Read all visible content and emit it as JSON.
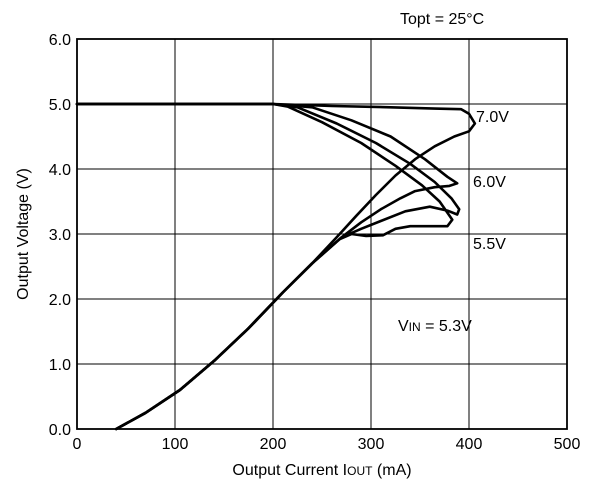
{
  "chart_data": {
    "type": "line",
    "xlabel_main": "Output Current I",
    "xlabel_sub": "OUT",
    "xlabel_unit": " (mA)",
    "ylabel": "Output Voltage (V)",
    "xlim": [
      0,
      500
    ],
    "ylim": [
      0,
      6
    ],
    "x_ticks": [
      "0",
      "100",
      "200",
      "300",
      "400",
      "500"
    ],
    "y_ticks": [
      "0.0",
      "1.0",
      "2.0",
      "3.0",
      "4.0",
      "5.0",
      "6.0"
    ],
    "grid": true,
    "condition": "Topt = 25°C",
    "vin_label_main": "V",
    "vin_label_sub": "IN",
    "vin_label_rest": " = 5.3V",
    "series": [
      {
        "name": "7.0V",
        "points": [
          [
            0,
            5.0
          ],
          [
            100,
            5.0
          ],
          [
            200,
            5.0
          ],
          [
            260,
            4.97
          ],
          [
            320,
            4.95
          ],
          [
            365,
            4.93
          ],
          [
            392,
            4.92
          ],
          [
            400,
            4.85
          ],
          [
            406,
            4.7
          ],
          [
            400,
            4.58
          ],
          [
            385,
            4.5
          ],
          [
            365,
            4.35
          ],
          [
            345,
            4.15
          ],
          [
            325,
            3.9
          ],
          [
            305,
            3.6
          ],
          [
            285,
            3.28
          ],
          [
            265,
            2.95
          ],
          [
            240,
            2.55
          ],
          [
            210,
            2.1
          ],
          [
            175,
            1.55
          ],
          [
            140,
            1.05
          ],
          [
            105,
            0.6
          ],
          [
            70,
            0.25
          ],
          [
            40,
            0.0
          ]
        ]
      },
      {
        "name": "6.0V",
        "points": [
          [
            0,
            5.0
          ],
          [
            100,
            5.0
          ],
          [
            200,
            5.0
          ],
          [
            240,
            4.95
          ],
          [
            280,
            4.75
          ],
          [
            320,
            4.5
          ],
          [
            355,
            4.15
          ],
          [
            378,
            3.88
          ],
          [
            388,
            3.78
          ],
          [
            380,
            3.74
          ],
          [
            365,
            3.72
          ],
          [
            345,
            3.66
          ],
          [
            330,
            3.55
          ],
          [
            310,
            3.38
          ],
          [
            290,
            3.18
          ],
          [
            270,
            2.95
          ],
          [
            240,
            2.55
          ],
          [
            210,
            2.1
          ],
          [
            175,
            1.55
          ],
          [
            140,
            1.05
          ],
          [
            105,
            0.6
          ],
          [
            70,
            0.25
          ],
          [
            40,
            0.0
          ]
        ]
      },
      {
        "name": "5.5V",
        "points": [
          [
            0,
            5.0
          ],
          [
            100,
            5.0
          ],
          [
            200,
            5.0
          ],
          [
            225,
            4.95
          ],
          [
            265,
            4.7
          ],
          [
            305,
            4.4
          ],
          [
            340,
            4.08
          ],
          [
            365,
            3.8
          ],
          [
            382,
            3.55
          ],
          [
            390,
            3.38
          ],
          [
            388,
            3.3
          ],
          [
            378,
            3.36
          ],
          [
            360,
            3.42
          ],
          [
            335,
            3.35
          ],
          [
            310,
            3.2
          ],
          [
            290,
            3.08
          ],
          [
            270,
            2.95
          ],
          [
            240,
            2.55
          ],
          [
            210,
            2.1
          ],
          [
            175,
            1.55
          ],
          [
            140,
            1.05
          ],
          [
            105,
            0.6
          ],
          [
            70,
            0.25
          ],
          [
            40,
            0.0
          ]
        ]
      },
      {
        "name": "V_IN = 5.3V",
        "points": [
          [
            0,
            5.0
          ],
          [
            100,
            5.0
          ],
          [
            200,
            5.0
          ],
          [
            215,
            4.96
          ],
          [
            250,
            4.72
          ],
          [
            290,
            4.4
          ],
          [
            325,
            4.05
          ],
          [
            352,
            3.75
          ],
          [
            370,
            3.5
          ],
          [
            383,
            3.22
          ],
          [
            378,
            3.12
          ],
          [
            360,
            3.12
          ],
          [
            340,
            3.12
          ],
          [
            325,
            3.08
          ],
          [
            312,
            2.98
          ],
          [
            295,
            2.97
          ],
          [
            280,
            3.0
          ],
          [
            268,
            2.92
          ],
          [
            240,
            2.55
          ],
          [
            210,
            2.1
          ],
          [
            175,
            1.55
          ],
          [
            140,
            1.05
          ],
          [
            105,
            0.6
          ],
          [
            70,
            0.25
          ],
          [
            40,
            0.0
          ]
        ]
      }
    ],
    "annotations": [
      "7.0V",
      "6.0V",
      "5.5V"
    ]
  }
}
